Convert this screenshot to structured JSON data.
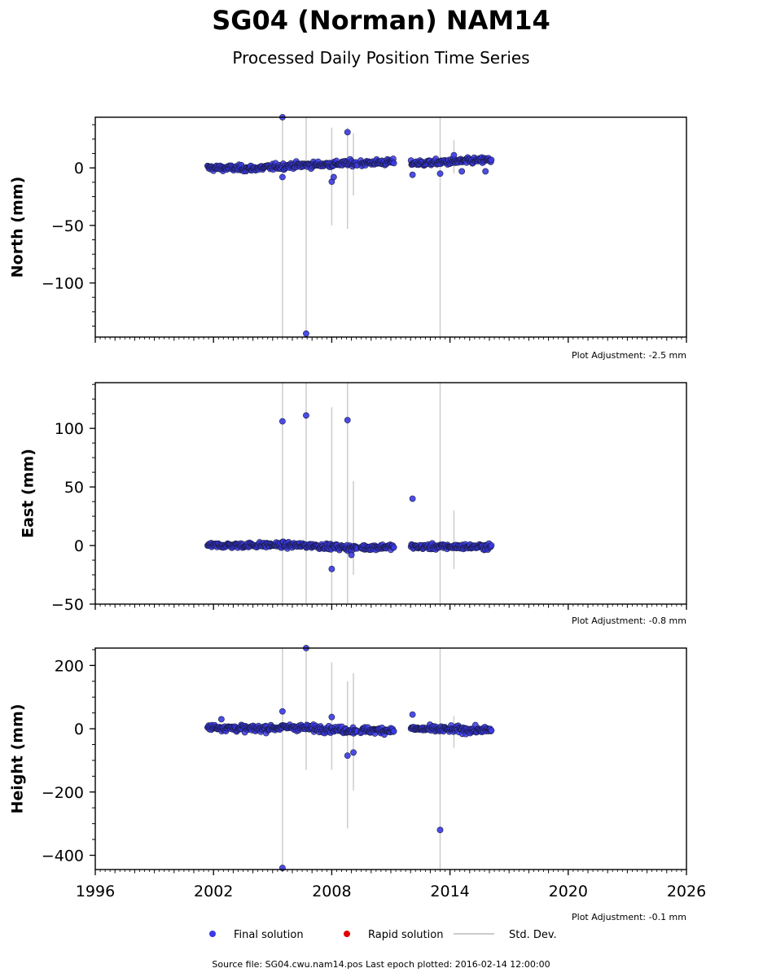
{
  "chart_data": {
    "type": "scatter",
    "title": "SG04 (Norman) NAM14",
    "subtitle": "Processed Daily Position Time Series",
    "x_ticks": [
      "1996",
      "2002",
      "2008",
      "2014",
      "2020",
      "2026"
    ],
    "xlim": [
      1996,
      2026
    ],
    "grid": false,
    "legend": {
      "placement": "bottom-center",
      "entries": [
        "Final solution",
        "Rapid solution",
        "Std. Dev."
      ]
    },
    "colors": {
      "final": "#3a3ae6",
      "rapid": "#e00000",
      "stddev": "#cccccc",
      "edge": "#1a1a40"
    },
    "panels": [
      {
        "ylabel": "North (mm)",
        "adjustment": "Plot Adjustment: -2.5 mm",
        "ylim": [
          -147,
          44
        ],
        "yticks": [
          0,
          -50,
          -100
        ],
        "ytick_labels": [
          "0",
          "−50",
          "−100"
        ],
        "trend": [
          [
            2001.7,
            0
          ],
          [
            2004.0,
            -0.5
          ],
          [
            2006.0,
            2
          ],
          [
            2009.0,
            4
          ],
          [
            2011.0,
            5
          ],
          [
            2012.5,
            4
          ],
          [
            2016.1,
            7
          ]
        ],
        "outliers": [
          [
            2005.5,
            44
          ],
          [
            2005.5,
            -8
          ],
          [
            2006.7,
            -144
          ],
          [
            2008.0,
            -12
          ],
          [
            2008.8,
            31
          ],
          [
            2008.1,
            -8
          ],
          [
            2012.1,
            -6
          ],
          [
            2013.5,
            -5
          ],
          [
            2014.2,
            11
          ],
          [
            2014.6,
            -3
          ],
          [
            2015.8,
            -3
          ]
        ],
        "error_bars": [
          [
            2005.5,
            44,
            -147
          ],
          [
            2006.7,
            44,
            -147
          ],
          [
            2008.0,
            35,
            -50
          ],
          [
            2008.8,
            35,
            -53
          ],
          [
            2013.5,
            44,
            -147
          ],
          [
            2009.1,
            30,
            -24
          ],
          [
            2014.2,
            24,
            -5
          ]
        ]
      },
      {
        "ylabel": "East (mm)",
        "adjustment": "Plot Adjustment: -0.8 mm",
        "ylim": [
          -50,
          139
        ],
        "yticks": [
          -50,
          0,
          50,
          100
        ],
        "ytick_labels": [
          "−50",
          "0",
          "50",
          "100"
        ],
        "trend": [
          [
            2001.7,
            0
          ],
          [
            2005.0,
            0.5
          ],
          [
            2007.0,
            0
          ],
          [
            2009.0,
            -2
          ],
          [
            2011.0,
            -1
          ],
          [
            2012.0,
            -1
          ],
          [
            2016.1,
            -1
          ]
        ],
        "outliers": [
          [
            2005.5,
            106
          ],
          [
            2006.7,
            111
          ],
          [
            2008.8,
            107
          ],
          [
            2012.1,
            40
          ],
          [
            2008.0,
            -20
          ],
          [
            2009.0,
            -8
          ]
        ],
        "error_bars": [
          [
            2005.5,
            139,
            -50
          ],
          [
            2006.7,
            139,
            -50
          ],
          [
            2008.0,
            118,
            -50
          ],
          [
            2008.8,
            139,
            -50
          ],
          [
            2009.1,
            55,
            -25
          ],
          [
            2013.5,
            139,
            -50
          ],
          [
            2014.2,
            30,
            -20
          ]
        ]
      },
      {
        "ylabel": "Height (mm)",
        "adjustment": "Plot Adjustment: -0.1 mm",
        "ylim": [
          -445,
          255
        ],
        "yticks": [
          200,
          0,
          -200,
          -400
        ],
        "ytick_labels": [
          "200",
          "0",
          "−200",
          "−400"
        ],
        "trend": [
          [
            2001.7,
            5
          ],
          [
            2004.0,
            0
          ],
          [
            2006.0,
            5
          ],
          [
            2009.0,
            -5
          ],
          [
            2011.0,
            -5
          ],
          [
            2012.0,
            0
          ],
          [
            2016.1,
            -5
          ]
        ],
        "outliers": [
          [
            2005.5,
            55
          ],
          [
            2006.7,
            255
          ],
          [
            2008.0,
            37
          ],
          [
            2012.1,
            45
          ],
          [
            2005.5,
            -440
          ],
          [
            2008.8,
            -85
          ],
          [
            2009.1,
            -75
          ],
          [
            2013.5,
            -320
          ],
          [
            2002.4,
            30
          ]
        ],
        "error_bars": [
          [
            2005.5,
            255,
            -445
          ],
          [
            2006.7,
            255,
            -130
          ],
          [
            2008.0,
            210,
            -130
          ],
          [
            2008.8,
            150,
            -315
          ],
          [
            2009.1,
            175,
            -195
          ],
          [
            2013.5,
            255,
            -445
          ],
          [
            2014.2,
            40,
            -60
          ]
        ]
      }
    ],
    "gaps": [
      [
        2009.3,
        2009.45
      ],
      [
        2011.15,
        2012.0
      ]
    ],
    "data_range": [
      2001.7,
      2016.12
    ]
  },
  "footer": "Source file: SG04.cwu.nam14.pos  Last epoch plotted: 2016-02-14 12:00:00"
}
